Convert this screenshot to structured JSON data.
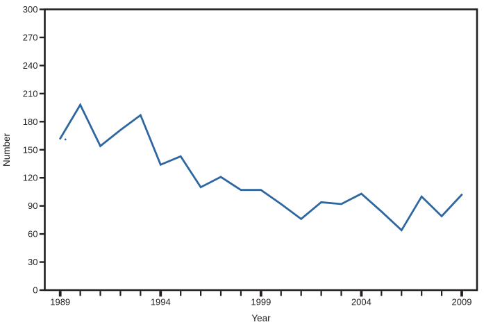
{
  "chart_data": {
    "type": "line",
    "x": [
      1989,
      1990,
      1991,
      1992,
      1993,
      1994,
      1995,
      1996,
      1997,
      1998,
      1999,
      2000,
      2001,
      2002,
      2003,
      2004,
      2005,
      2006,
      2007,
      2008,
      2009
    ],
    "series": [
      {
        "name": "Number",
        "values": [
          162,
          198,
          154,
          171,
          187,
          134,
          143,
          110,
          121,
          107,
          107,
          92,
          76,
          94,
          92,
          103,
          84,
          64,
          100,
          79,
          102
        ],
        "color": "#2e67a0"
      }
    ],
    "title": "",
    "xlabel": "Year",
    "ylabel": "Number",
    "ylim": [
      0,
      300
    ],
    "ytick_step": 30,
    "ytick_labels": [
      "0",
      "30",
      "60",
      "90",
      "120",
      "150",
      "180",
      "210",
      "240",
      "270",
      "300"
    ],
    "xtick_minor_every": 1,
    "xticks_labeled": [
      1989,
      1994,
      1999,
      2004,
      2009
    ],
    "xtick_labels": [
      "1989",
      "1994",
      "1999",
      "2004",
      "2009"
    ],
    "legend": "none",
    "grid": false,
    "axis_color": "#231f20",
    "background_color": "#ffffff",
    "stray_dot": {
      "year": 1989.26,
      "value": 161
    }
  }
}
